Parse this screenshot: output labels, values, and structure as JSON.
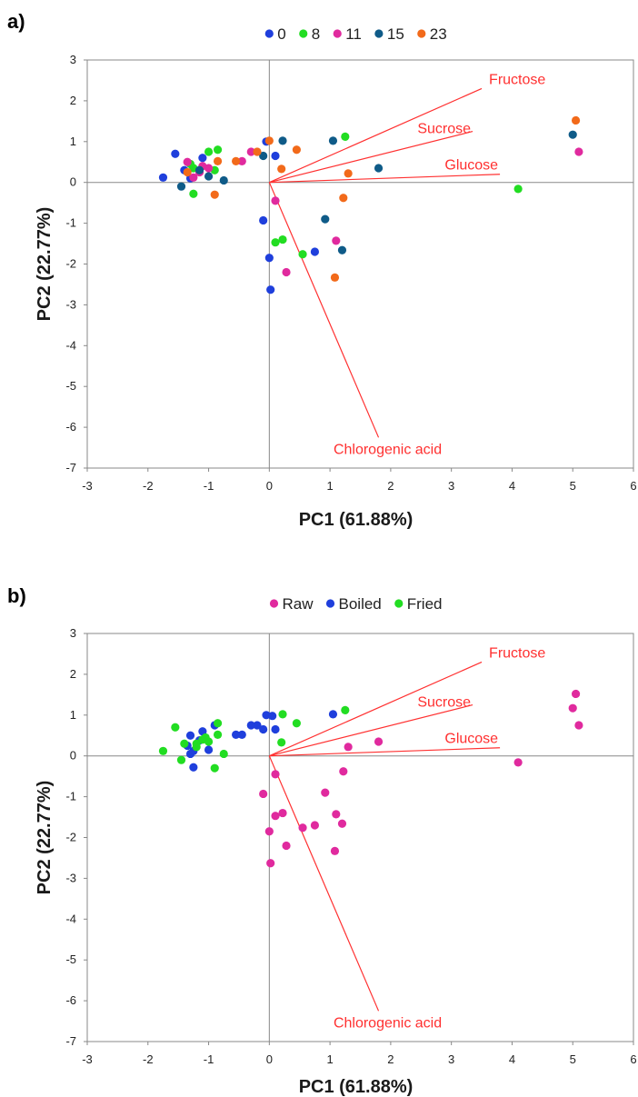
{
  "chart_data": [
    {
      "panel_label": "a)",
      "type": "scatter",
      "xlabel": "PC1 (61.88%)",
      "ylabel": "PC2 (22.77%)",
      "xlim": [
        -3,
        6
      ],
      "ylim": [
        -7,
        3
      ],
      "xticks": [
        "-3",
        "-2",
        "-1",
        "0",
        "1",
        "2",
        "3",
        "4",
        "5",
        "6"
      ],
      "yticks": [
        "3",
        "2",
        "1",
        "0",
        "-1",
        "-2",
        "-3",
        "-4",
        "-5",
        "-6",
        "-7"
      ],
      "grid": false,
      "legend_position": "top-center",
      "loadings": [
        {
          "name": "Fructose",
          "x": 3.5,
          "y": 2.3
        },
        {
          "name": "Sucrose",
          "x": 3.35,
          "y": 1.25
        },
        {
          "name": "Glucose",
          "x": 3.8,
          "y": 0.2
        },
        {
          "name": "Chlorogenic acid",
          "x": 1.8,
          "y": -6.25
        }
      ],
      "series": [
        {
          "name": "0",
          "color": "#1f3fdc",
          "points": [
            [
              -1.55,
              0.7
            ],
            [
              -1.75,
              0.12
            ],
            [
              -1.1,
              0.6
            ],
            [
              -1.4,
              0.3
            ],
            [
              -0.05,
              1.0
            ],
            [
              0.1,
              0.65
            ],
            [
              -0.1,
              -0.93
            ],
            [
              0.0,
              -1.85
            ],
            [
              0.02,
              -2.63
            ],
            [
              0.75,
              -1.7
            ],
            [
              -1.3,
              0.1
            ]
          ]
        },
        {
          "name": "8",
          "color": "#22dd22",
          "points": [
            [
              -1.25,
              0.35
            ],
            [
              -1.0,
              0.75
            ],
            [
              -0.85,
              0.8
            ],
            [
              -1.3,
              0.45
            ],
            [
              -1.25,
              -0.28
            ],
            [
              -0.9,
              0.3
            ],
            [
              1.25,
              1.12
            ],
            [
              0.1,
              -1.47
            ],
            [
              0.22,
              -1.4
            ],
            [
              0.55,
              -1.76
            ],
            [
              4.1,
              -0.16
            ]
          ]
        },
        {
          "name": "11",
          "color": "#e02a9e",
          "points": [
            [
              -1.35,
              0.5
            ],
            [
              -1.1,
              0.4
            ],
            [
              -1.25,
              0.12
            ],
            [
              -1.0,
              0.35
            ],
            [
              -0.3,
              0.75
            ],
            [
              -0.45,
              0.52
            ],
            [
              0.1,
              -0.45
            ],
            [
              0.28,
              -2.2
            ],
            [
              1.1,
              -1.43
            ],
            [
              5.1,
              0.75
            ],
            [
              -1.15,
              0.25
            ]
          ]
        },
        {
          "name": "15",
          "color": "#0f5b88",
          "points": [
            [
              -1.45,
              -0.1
            ],
            [
              -1.15,
              0.3
            ],
            [
              -1.0,
              0.15
            ],
            [
              -0.75,
              0.05
            ],
            [
              -0.1,
              0.65
            ],
            [
              0.22,
              1.02
            ],
            [
              1.05,
              1.02
            ],
            [
              1.8,
              0.35
            ],
            [
              0.92,
              -0.9
            ],
            [
              1.2,
              -1.66
            ],
            [
              5.0,
              1.17
            ]
          ]
        },
        {
          "name": "23",
          "color": "#f26a1a",
          "points": [
            [
              -1.35,
              0.25
            ],
            [
              -0.85,
              0.52
            ],
            [
              -0.55,
              0.52
            ],
            [
              -0.2,
              0.75
            ],
            [
              0.0,
              1.02
            ],
            [
              0.2,
              0.33
            ],
            [
              0.45,
              0.8
            ],
            [
              -0.9,
              -0.3
            ],
            [
              1.3,
              0.22
            ],
            [
              1.22,
              -0.38
            ],
            [
              1.08,
              -2.33
            ],
            [
              5.05,
              1.52
            ]
          ]
        }
      ]
    },
    {
      "panel_label": "b)",
      "type": "scatter",
      "xlabel": "PC1 (61.88%)",
      "ylabel": "PC2 (22.77%)",
      "xlim": [
        -3,
        6
      ],
      "ylim": [
        -7,
        3
      ],
      "xticks": [
        "-3",
        "-2",
        "-1",
        "0",
        "1",
        "2",
        "3",
        "4",
        "5",
        "6"
      ],
      "yticks": [
        "3",
        "2",
        "1",
        "0",
        "-1",
        "-2",
        "-3",
        "-4",
        "-5",
        "-6",
        "-7"
      ],
      "grid": false,
      "legend_position": "top-center",
      "loadings": [
        {
          "name": "Fructose",
          "x": 3.5,
          "y": 2.3
        },
        {
          "name": "Sucrose",
          "x": 3.35,
          "y": 1.25
        },
        {
          "name": "Glucose",
          "x": 3.8,
          "y": 0.2
        },
        {
          "name": "Chlorogenic acid",
          "x": 1.8,
          "y": -6.25
        }
      ],
      "series": [
        {
          "name": "Raw",
          "color": "#e02a9e",
          "points": [
            [
              5.05,
              1.52
            ],
            [
              5.0,
              1.17
            ],
            [
              5.1,
              0.75
            ],
            [
              4.1,
              -0.16
            ],
            [
              1.8,
              0.35
            ],
            [
              1.3,
              0.22
            ],
            [
              1.22,
              -0.38
            ],
            [
              0.92,
              -0.9
            ],
            [
              1.1,
              -1.43
            ],
            [
              1.2,
              -1.66
            ],
            [
              1.08,
              -2.33
            ],
            [
              0.75,
              -1.7
            ],
            [
              0.55,
              -1.76
            ],
            [
              0.1,
              -1.47
            ],
            [
              0.22,
              -1.4
            ],
            [
              0.28,
              -2.2
            ],
            [
              0.0,
              -1.85
            ],
            [
              0.02,
              -2.63
            ],
            [
              -0.1,
              -0.93
            ],
            [
              0.1,
              -0.45
            ]
          ]
        },
        {
          "name": "Boiled",
          "color": "#1f3fdc",
          "points": [
            [
              -0.05,
              1.0
            ],
            [
              0.05,
              0.98
            ],
            [
              1.05,
              1.02
            ],
            [
              0.1,
              0.65
            ],
            [
              -0.1,
              0.65
            ],
            [
              -0.2,
              0.75
            ],
            [
              -0.3,
              0.75
            ],
            [
              -0.45,
              0.52
            ],
            [
              -0.55,
              0.52
            ],
            [
              -0.9,
              0.75
            ],
            [
              -1.1,
              0.6
            ],
            [
              -1.3,
              0.5
            ],
            [
              -1.35,
              0.25
            ],
            [
              -1.25,
              0.12
            ],
            [
              -1.0,
              0.15
            ],
            [
              -1.25,
              -0.28
            ],
            [
              -1.15,
              0.38
            ],
            [
              -1.3,
              0.05
            ]
          ]
        },
        {
          "name": "Fried",
          "color": "#22dd22",
          "points": [
            [
              1.25,
              1.12
            ],
            [
              0.22,
              1.02
            ],
            [
              0.45,
              0.8
            ],
            [
              0.2,
              0.33
            ],
            [
              -0.85,
              0.8
            ],
            [
              -0.85,
              0.52
            ],
            [
              -1.0,
              0.35
            ],
            [
              -1.1,
              0.4
            ],
            [
              -1.2,
              0.3
            ],
            [
              -1.4,
              0.3
            ],
            [
              -1.55,
              0.7
            ],
            [
              -1.75,
              0.12
            ],
            [
              -1.45,
              -0.1
            ],
            [
              -0.75,
              0.05
            ],
            [
              -0.9,
              -0.3
            ],
            [
              -1.2,
              0.22
            ],
            [
              -1.05,
              0.45
            ]
          ]
        }
      ]
    }
  ]
}
